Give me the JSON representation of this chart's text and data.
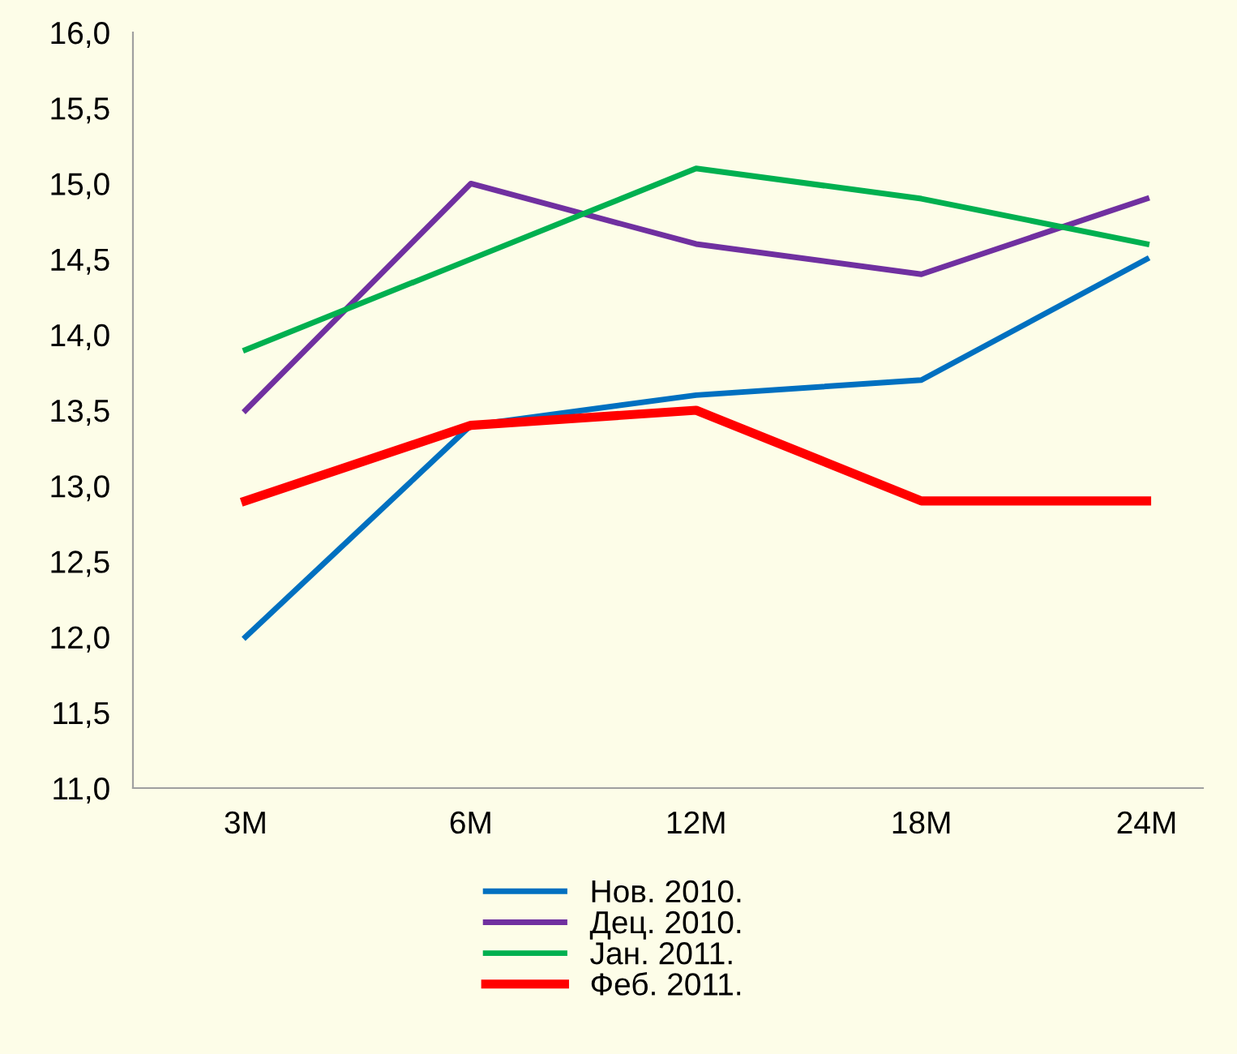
{
  "chart_data": {
    "type": "line",
    "categories": [
      "3M",
      "6M",
      "12M",
      "18M",
      "24M"
    ],
    "series": [
      {
        "name": "Нов. 2010.",
        "color": "#0070c0",
        "values": [
          12.0,
          13.4,
          13.6,
          13.7,
          14.5
        ]
      },
      {
        "name": "Дец. 2010.",
        "color": "#7030a0",
        "values": [
          13.5,
          15.0,
          14.6,
          14.4,
          14.9
        ]
      },
      {
        "name": "Јан. 2011.",
        "color": "#00b050",
        "values": [
          13.9,
          14.5,
          15.1,
          14.9,
          14.6
        ]
      },
      {
        "name": "Феб. 2011.",
        "color": "#ff0000",
        "values": [
          12.9,
          13.4,
          13.5,
          12.9,
          12.9
        ]
      }
    ],
    "ylim": [
      11,
      16
    ],
    "yticks": [
      {
        "value": 11,
        "label": "11,0"
      },
      {
        "value": 11.5,
        "label": "11,5"
      },
      {
        "value": 12,
        "label": "12,0"
      },
      {
        "value": 12.5,
        "label": "12,5"
      },
      {
        "value": 13,
        "label": "13,0"
      },
      {
        "value": 13.5,
        "label": "13,5"
      },
      {
        "value": 14,
        "label": "14,0"
      },
      {
        "value": 14.5,
        "label": "14,5"
      },
      {
        "value": 15,
        "label": "15,0"
      },
      {
        "value": 15.5,
        "label": "15,5"
      },
      {
        "value": 16,
        "label": "16,0"
      }
    ],
    "grid": false,
    "legend": "bottom",
    "marker": "none",
    "line_style": "solid"
  }
}
